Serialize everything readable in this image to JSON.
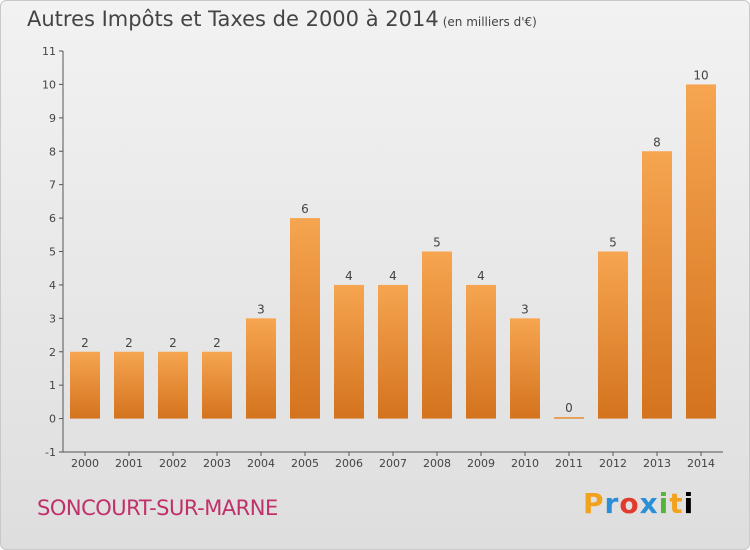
{
  "header": {
    "title": "Autres Impôts et Taxes de 2000 à 2014",
    "unit": "(en milliers d'€)"
  },
  "footer": {
    "commune": "SONCOURT-SUR-MARNE",
    "logo": "Proxiti"
  },
  "chart_data": {
    "type": "bar",
    "title": "Autres Impôts et Taxes de 2000 à 2014",
    "subtitle": "(en milliers d'€)",
    "xlabel": "",
    "ylabel": "",
    "categories": [
      "2000",
      "2001",
      "2002",
      "2003",
      "2004",
      "2005",
      "2006",
      "2007",
      "2008",
      "2009",
      "2010",
      "2011",
      "2012",
      "2013",
      "2014"
    ],
    "values": [
      2,
      2,
      2,
      2,
      3,
      6,
      4,
      4,
      5,
      4,
      3,
      0,
      5,
      8,
      10
    ],
    "data_labels": [
      "2",
      "2",
      "2",
      "2",
      "3",
      "6",
      "4",
      "4",
      "5",
      "4",
      "3",
      "0",
      "5",
      "8",
      "10"
    ],
    "y_ticks": [
      "-1",
      "0",
      "1",
      "2",
      "3",
      "4",
      "5",
      "6",
      "7",
      "8",
      "9",
      "10",
      "11"
    ],
    "ylim": [
      -1,
      11
    ],
    "grid": false,
    "colors": {
      "bar_top": "#f6a550",
      "bar_bottom": "#d4731e",
      "axis": "#555555",
      "text": "#444444"
    }
  }
}
